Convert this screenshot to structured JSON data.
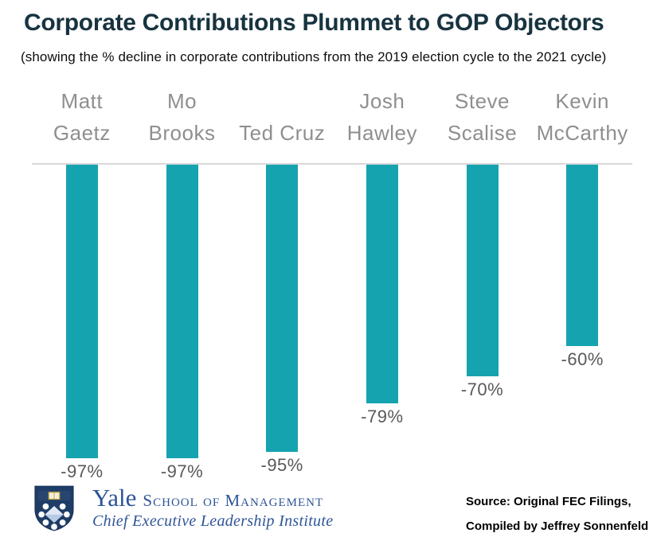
{
  "header": {
    "title": "Corporate Contributions Plummet to GOP Objectors",
    "subtitle": "(showing the % decline in corporate contributions from the 2019 election cycle to the 2021 cycle)"
  },
  "chart_data": {
    "type": "bar",
    "title": "Corporate Contributions Plummet to GOP Objectors",
    "subtitle": "(showing the % decline in corporate contributions from the 2019 election cycle to the 2021 cycle)",
    "categories": [
      "Matt Gaetz",
      "Mo Brooks",
      "Ted Cruz",
      "Josh Hawley",
      "Steve Scalise",
      "Kevin McCarthy"
    ],
    "category_label_lines": [
      [
        "Matt",
        "Gaetz"
      ],
      [
        "Mo",
        "Brooks"
      ],
      [
        "Ted Cruz"
      ],
      [
        "Josh",
        "Hawley"
      ],
      [
        "Steve",
        "Scalise"
      ],
      [
        "Kevin",
        "McCarthy"
      ]
    ],
    "values": [
      -97,
      -97,
      -95,
      -79,
      -70,
      -60
    ],
    "value_labels": [
      "-97%",
      "-97%",
      "-95%",
      "-79%",
      "-70%",
      "-60%"
    ],
    "xlabel": "",
    "ylabel": "",
    "ylim": [
      -100,
      0
    ],
    "grid": false,
    "legend": false,
    "orientation": "vertical-bars-descending-from-zero-line",
    "bar_color": "#16a3b0"
  },
  "colors": {
    "bar_teal": "#16a3b0",
    "title_dark": "#17333f",
    "category_gray": "#8f8f8f",
    "value_gray": "#595959",
    "axis_line_gray": "#d9d9d9",
    "yale_blue": "#2e5496",
    "shield_navy": "#1e3c66"
  },
  "footer": {
    "logo": {
      "shield_icon": "yale-som-shield",
      "org": "Yale",
      "org_suffix": "School of Management",
      "institute": "Chief Executive Leadership Institute"
    },
    "source_line1": "Source: Original FEC Filings,",
    "source_line2": "Compiled by Jeffrey Sonnenfeld"
  }
}
